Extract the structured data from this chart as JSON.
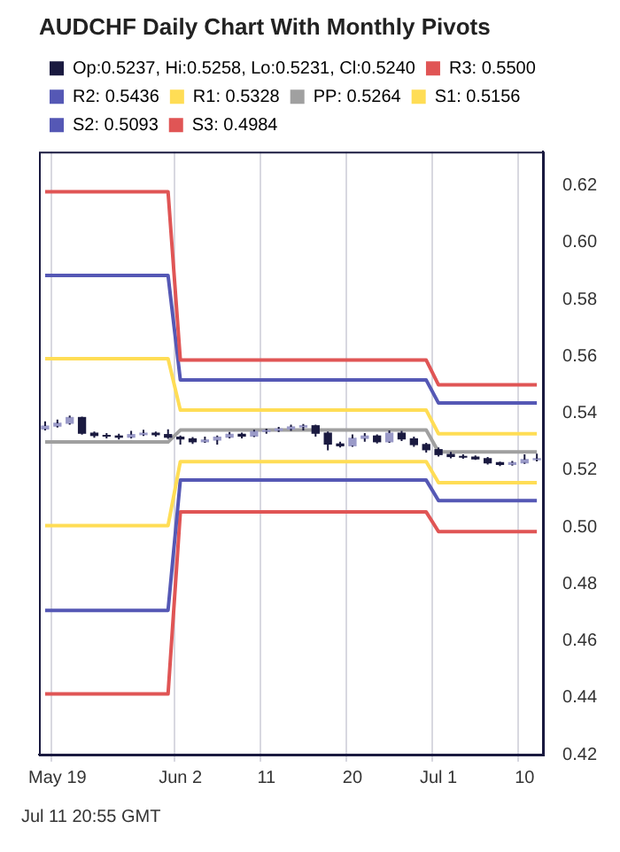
{
  "chart_data": {
    "type": "candlestick",
    "title": "AUDCHF Daily Chart With Monthly Pivots",
    "categories": [
      null,
      "May 19",
      null,
      null,
      null,
      null,
      null,
      null,
      null,
      null,
      null,
      "Jun 2",
      null,
      null,
      null,
      null,
      null,
      null,
      "11",
      null,
      null,
      null,
      null,
      null,
      null,
      "20",
      null,
      null,
      null,
      null,
      null,
      null,
      "Jul 1",
      null,
      null,
      null,
      null,
      null,
      null,
      "10",
      null
    ],
    "ylim": [
      0.42,
      0.632
    ],
    "yticks": [
      0.42,
      0.44,
      0.46,
      0.48,
      {
        "value": 0.5,
        "label": "0.50"
      },
      0.52,
      0.54,
      0.56,
      0.58,
      {
        "value": 0.6,
        "label": "0.60"
      },
      0.62
    ],
    "grid": "x",
    "legend": "top left",
    "annotations": [
      "Jul 11 20:55 GMT"
    ],
    "series": [
      {
        "name": "Op:0.5237, Hi:0.5258, Lo:0.5231, Cl:0.5240",
        "color": "#1a1a40",
        "colors": [
          "#9a9ac8",
          "#9a9ac8",
          "#9a9ac8",
          "#1a1a40",
          "#1a1a40",
          "#1a1a40",
          "#1a1a40",
          "#9a9ac8",
          "#9a9ac8",
          "#1a1a40",
          "#1a1a40",
          "#1a1a40",
          "#1a1a40",
          "#9a9ac8",
          "#9a9ac8",
          "#9a9ac8",
          "#1a1a40",
          "#9a9ac8",
          "#9a9ac8",
          "#9a9ac8",
          "#9a9ac8",
          "#9a9ac8",
          "#1a1a40",
          "#1a1a40",
          "#1a1a40",
          "#9a9ac8",
          "#9a9ac8",
          "#1a1a40",
          "#9a9ac8",
          "#1a1a40",
          "#1a1a40",
          "#1a1a40",
          "#1a1a40",
          "#1a1a40",
          "#1a1a40",
          "#1a1a40",
          "#1a1a40",
          "#1a1a40",
          "#9a9ac8",
          "#9a9ac8",
          "#9a9ac8"
        ],
        "ohlc": [
          [
            0.5345,
            0.5372,
            0.534,
            0.5355
          ],
          [
            0.5355,
            0.5378,
            0.535,
            0.5365
          ],
          [
            0.5365,
            0.5392,
            0.536,
            0.5385
          ],
          [
            0.5385,
            0.5388,
            0.5325,
            0.533
          ],
          [
            0.533,
            0.5336,
            0.5314,
            0.5322
          ],
          [
            0.5322,
            0.533,
            0.5312,
            0.532
          ],
          [
            0.532,
            0.5328,
            0.5308,
            0.5316
          ],
          [
            0.5316,
            0.5338,
            0.5312,
            0.5325
          ],
          [
            0.5325,
            0.5342,
            0.532,
            0.533
          ],
          [
            0.533,
            0.5336,
            0.5318,
            0.5325
          ],
          [
            0.5325,
            0.5344,
            0.531,
            0.5316
          ],
          [
            0.5316,
            0.5322,
            0.529,
            0.531
          ],
          [
            0.531,
            0.5316,
            0.5292,
            0.53
          ],
          [
            0.53,
            0.5318,
            0.5296,
            0.5306
          ],
          [
            0.5306,
            0.5322,
            0.529,
            0.5316
          ],
          [
            0.5316,
            0.5334,
            0.5312,
            0.5326
          ],
          [
            0.5326,
            0.5332,
            0.5312,
            0.532
          ],
          [
            0.532,
            0.5342,
            0.5316,
            0.5336
          ],
          [
            0.5336,
            0.5346,
            0.5328,
            0.534
          ],
          [
            0.534,
            0.5352,
            0.5334,
            0.5345
          ],
          [
            0.5345,
            0.536,
            0.5338,
            0.5352
          ],
          [
            0.5352,
            0.5362,
            0.534,
            0.5356
          ],
          [
            0.5356,
            0.536,
            0.5318,
            0.533
          ],
          [
            0.533,
            0.5336,
            0.527,
            0.5292
          ],
          [
            0.5292,
            0.53,
            0.528,
            0.5286
          ],
          [
            0.5286,
            0.5326,
            0.5282,
            0.5312
          ],
          [
            0.5312,
            0.533,
            0.53,
            0.532
          ],
          [
            0.532,
            0.5326,
            0.5294,
            0.53
          ],
          [
            0.53,
            0.534,
            0.5296,
            0.533
          ],
          [
            0.533,
            0.5338,
            0.5302,
            0.531
          ],
          [
            0.531,
            0.5318,
            0.5282,
            0.529
          ],
          [
            0.529,
            0.5296,
            0.5262,
            0.5272
          ],
          [
            0.5272,
            0.528,
            0.5248,
            0.5255
          ],
          [
            0.5255,
            0.5264,
            0.5242,
            0.5248
          ],
          [
            0.5248,
            0.5256,
            0.524,
            0.5246
          ],
          [
            0.5246,
            0.5252,
            0.5236,
            0.524
          ],
          [
            0.524,
            0.5246,
            0.522,
            0.5226
          ],
          [
            0.5226,
            0.523,
            0.5214,
            0.522
          ],
          [
            0.522,
            0.5232,
            0.5216,
            0.5226
          ],
          [
            0.5226,
            0.5256,
            0.5222,
            0.5237
          ],
          [
            0.5237,
            0.5258,
            0.5231,
            0.524
          ]
        ]
      },
      {
        "name": "R3: 0.5500",
        "type": "line",
        "color": "#e05555",
        "values": [
          0.6179,
          0.6179,
          0.6179,
          0.6179,
          0.6179,
          0.6179,
          0.6179,
          0.6179,
          0.6179,
          0.6179,
          0.6179,
          0.5587,
          0.5587,
          0.5587,
          0.5587,
          0.5587,
          0.5587,
          0.5587,
          0.5587,
          0.5587,
          0.5587,
          0.5587,
          0.5587,
          0.5587,
          0.5587,
          0.5587,
          0.5587,
          0.5587,
          0.5587,
          0.5587,
          0.5587,
          0.5587,
          0.55,
          0.55,
          0.55,
          0.55,
          0.55,
          0.55,
          0.55,
          0.55,
          0.55
        ]
      },
      {
        "name": "R2: 0.5436",
        "type": "line",
        "color": "#5558b5",
        "values": [
          0.5885,
          0.5885,
          0.5885,
          0.5885,
          0.5885,
          0.5885,
          0.5885,
          0.5885,
          0.5885,
          0.5885,
          0.5885,
          0.5517,
          0.5517,
          0.5517,
          0.5517,
          0.5517,
          0.5517,
          0.5517,
          0.5517,
          0.5517,
          0.5517,
          0.5517,
          0.5517,
          0.5517,
          0.5517,
          0.5517,
          0.5517,
          0.5517,
          0.5517,
          0.5517,
          0.5517,
          0.5517,
          0.5436,
          0.5436,
          0.5436,
          0.5436,
          0.5436,
          0.5436,
          0.5436,
          0.5436,
          0.5436
        ]
      },
      {
        "name": "R1: 0.5328",
        "type": "line",
        "color": "#ffdd55",
        "values": [
          0.5592,
          0.5592,
          0.5592,
          0.5592,
          0.5592,
          0.5592,
          0.5592,
          0.5592,
          0.5592,
          0.5592,
          0.5592,
          0.5411,
          0.5411,
          0.5411,
          0.5411,
          0.5411,
          0.5411,
          0.5411,
          0.5411,
          0.5411,
          0.5411,
          0.5411,
          0.5411,
          0.5411,
          0.5411,
          0.5411,
          0.5411,
          0.5411,
          0.5411,
          0.5411,
          0.5411,
          0.5411,
          0.5328,
          0.5328,
          0.5328,
          0.5328,
          0.5328,
          0.5328,
          0.5328,
          0.5328,
          0.5328
        ]
      },
      {
        "name": "PP: 0.5264",
        "type": "line",
        "color": "#a0a0a0",
        "values": [
          0.5299,
          0.5299,
          0.5299,
          0.5299,
          0.5299,
          0.5299,
          0.5299,
          0.5299,
          0.5299,
          0.5299,
          0.5299,
          0.5341,
          0.5341,
          0.5341,
          0.5341,
          0.5341,
          0.5341,
          0.5341,
          0.5341,
          0.5341,
          0.5341,
          0.5341,
          0.5341,
          0.5341,
          0.5341,
          0.5341,
          0.5341,
          0.5341,
          0.5341,
          0.5341,
          0.5341,
          0.5341,
          0.5264,
          0.5264,
          0.5264,
          0.5264,
          0.5264,
          0.5264,
          0.5264,
          0.5264,
          0.5264
        ]
      },
      {
        "name": "S1: 0.5156",
        "type": "line",
        "color": "#ffdd55",
        "values": [
          0.5005,
          0.5005,
          0.5005,
          0.5005,
          0.5005,
          0.5005,
          0.5005,
          0.5005,
          0.5005,
          0.5005,
          0.5005,
          0.523,
          0.523,
          0.523,
          0.523,
          0.523,
          0.523,
          0.523,
          0.523,
          0.523,
          0.523,
          0.523,
          0.523,
          0.523,
          0.523,
          0.523,
          0.523,
          0.523,
          0.523,
          0.523,
          0.523,
          0.523,
          0.5156,
          0.5156,
          0.5156,
          0.5156,
          0.5156,
          0.5156,
          0.5156,
          0.5156,
          0.5156
        ]
      },
      {
        "name": "S2: 0.5093",
        "type": "line",
        "color": "#5558b5",
        "values": [
          0.4707,
          0.4707,
          0.4707,
          0.4707,
          0.4707,
          0.4707,
          0.4707,
          0.4707,
          0.4707,
          0.4707,
          0.4707,
          0.5165,
          0.5165,
          0.5165,
          0.5165,
          0.5165,
          0.5165,
          0.5165,
          0.5165,
          0.5165,
          0.5165,
          0.5165,
          0.5165,
          0.5165,
          0.5165,
          0.5165,
          0.5165,
          0.5165,
          0.5165,
          0.5165,
          0.5165,
          0.5165,
          0.5093,
          0.5093,
          0.5093,
          0.5093,
          0.5093,
          0.5093,
          0.5093,
          0.5093,
          0.5093
        ]
      },
      {
        "name": "S3: 0.4984",
        "type": "line",
        "color": "#e05555",
        "values": [
          0.4413,
          0.4413,
          0.4413,
          0.4413,
          0.4413,
          0.4413,
          0.4413,
          0.4413,
          0.4413,
          0.4413,
          0.4413,
          0.5053,
          0.5053,
          0.5053,
          0.5053,
          0.5053,
          0.5053,
          0.5053,
          0.5053,
          0.5053,
          0.5053,
          0.5053,
          0.5053,
          0.5053,
          0.5053,
          0.5053,
          0.5053,
          0.5053,
          0.5053,
          0.5053,
          0.5053,
          0.5053,
          0.4984,
          0.4984,
          0.4984,
          0.4984,
          0.4984,
          0.4984,
          0.4984,
          0.4984,
          0.4984
        ]
      }
    ]
  }
}
